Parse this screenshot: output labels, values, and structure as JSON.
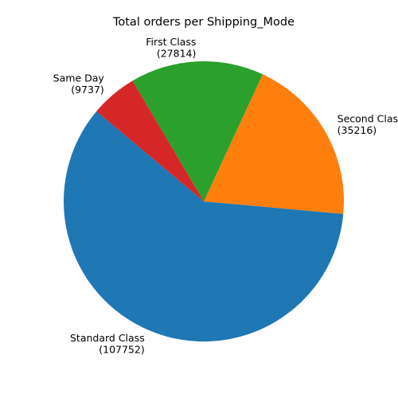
{
  "chart_data": {
    "type": "pie",
    "title": "Total orders per Shipping_Mode",
    "slices": [
      {
        "label": "Standard Class",
        "value": 107752,
        "value_text": "(107752)",
        "color": "#1f77b4"
      },
      {
        "label": "Second Class",
        "value": 35216,
        "value_text": "(35216)",
        "color": "#ff7f0e"
      },
      {
        "label": "First Class",
        "value": 27814,
        "value_text": "(27814)",
        "color": "#2ca02c"
      },
      {
        "label": "Same Day",
        "value": 9737,
        "value_text": "(9737)",
        "color": "#d62728"
      }
    ]
  }
}
